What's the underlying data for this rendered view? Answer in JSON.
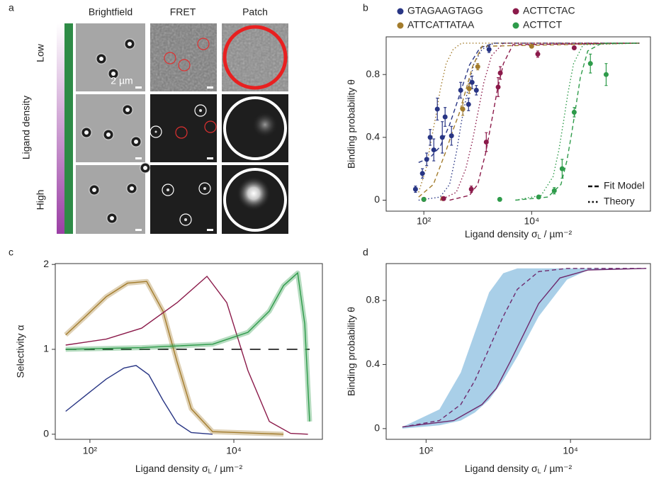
{
  "panel_a": {
    "label": "a",
    "columns": [
      "Brightfield",
      "FRET",
      "Patch"
    ],
    "row_top": "Low",
    "row_bottom": "High",
    "axis_label": "Ligand density",
    "scale_bar": "2 µm"
  },
  "chart_data": [
    {
      "type": "scatter",
      "label": "b",
      "xlabel": {
        "main": "Ligand density σ",
        "sub": "L",
        "unit": " / µm⁻²"
      },
      "ylabel": "Binding probability θ",
      "xscale": "log",
      "xlim": [
        20,
        1600000
      ],
      "ylim": [
        -0.07,
        1.04
      ],
      "xticks": [
        {
          "value": 100,
          "label": "10²"
        },
        {
          "value": 10000,
          "label": "10⁴"
        }
      ],
      "yticks": [
        0,
        0.4,
        0.8
      ],
      "legend_styles": [
        {
          "name": "Fit Model",
          "dash": "dashed"
        },
        {
          "name": "Theory",
          "dash": "dotted"
        }
      ],
      "series": [
        {
          "name": "GTAGAAGTAGG",
          "color": "#283584",
          "x": [
            70,
            94,
            113,
            131,
            153,
            178,
            220,
            248,
            326,
            483,
            675,
            785,
            942,
            1620
          ],
          "values": [
            0.07,
            0.17,
            0.26,
            0.4,
            0.32,
            0.58,
            0.4,
            0.53,
            0.41,
            0.7,
            0.61,
            0.75,
            0.7,
            0.96
          ],
          "errors": [
            0.02,
            0.03,
            0.04,
            0.05,
            0.07,
            0.07,
            0.1,
            0.06,
            0.06,
            0.05,
            0.04,
            0.04,
            0.03,
            0.02
          ],
          "fit": {
            "x": [
              80,
              130,
              200,
              300,
              450,
              700,
              1100,
              2000,
              1000000
            ],
            "values": [
              0.24,
              0.27,
              0.34,
              0.48,
              0.66,
              0.86,
              0.97,
              1,
              1
            ]
          },
          "theory": {
            "x": [
              80,
              200,
              300,
              400,
              500,
              650,
              850,
              1200,
              2000,
              1000000
            ],
            "values": [
              0,
              0.02,
              0.1,
              0.3,
              0.5,
              0.7,
              0.87,
              0.96,
              1,
              1
            ]
          }
        },
        {
          "name": "ATTCATTATAA",
          "color": "#a37c2c",
          "x": [
            100,
            226,
            528,
            694,
            1000,
            10000
          ],
          "values": [
            0.005,
            0.01,
            0.58,
            0.71,
            0.85,
            0.98
          ],
          "errors": [
            0.01,
            0.01,
            0.04,
            0.03,
            0.02,
            0.01
          ],
          "fit": {
            "x": [
              80,
              150,
              250,
              350,
              450,
              600,
              800,
              1200,
              1000000
            ],
            "values": [
              0.02,
              0.1,
              0.3,
              0.45,
              0.55,
              0.7,
              0.85,
              0.98,
              1
            ]
          },
          "theory": {
            "x": [
              80,
              110,
              140,
              170,
              200,
              260,
              350,
              500,
              1000000
            ],
            "values": [
              0.05,
              0.2,
              0.4,
              0.55,
              0.7,
              0.87,
              0.96,
              1,
              1
            ]
          }
        },
        {
          "name": "ACTTCTAC",
          "color": "#8b1a4a",
          "x": [
            100,
            233,
            760,
            1440,
            2390,
            2620,
            13000,
            61600
          ],
          "values": [
            0.005,
            0.01,
            0.07,
            0.37,
            0.72,
            0.81,
            0.93,
            0.97
          ],
          "errors": [
            0.01,
            0.01,
            0.02,
            0.06,
            0.06,
            0.04,
            0.02,
            0.01
          ],
          "fit": {
            "x": [
              300,
              700,
              1000,
              1400,
              1800,
              2300,
              3000,
              4500,
              1000000
            ],
            "values": [
              0,
              0.03,
              0.1,
              0.3,
              0.5,
              0.7,
              0.87,
              0.99,
              1
            ]
          },
          "theory": {
            "x": [
              200,
              400,
              600,
              800,
              1000,
              1300,
              1800,
              3000,
              1000000
            ],
            "values": [
              0,
              0.05,
              0.2,
              0.38,
              0.55,
              0.75,
              0.92,
              1,
              1
            ]
          }
        },
        {
          "name": "ACTTCT",
          "color": "#2e9b4a",
          "x": [
            100,
            2560,
            13500,
            26300,
            36800,
            61600,
            123000,
            241000
          ],
          "values": [
            0.005,
            0.005,
            0.02,
            0.06,
            0.2,
            0.56,
            0.87,
            0.8
          ],
          "errors": [
            0.01,
            0.01,
            0.01,
            0.02,
            0.06,
            0.03,
            0.06,
            0.07
          ],
          "fit": {
            "x": [
              5000,
              20000,
              35000,
              45000,
              55000,
              65000,
              80000,
              110000,
              200000,
              1000000
            ],
            "values": [
              0,
              0.02,
              0.1,
              0.25,
              0.42,
              0.58,
              0.78,
              0.95,
              1,
              1
            ]
          },
          "theory": {
            "x": [
              5000,
              15000,
              25000,
              32000,
              39000,
              47000,
              60000,
              90000,
              1000000
            ],
            "values": [
              0,
              0.03,
              0.15,
              0.32,
              0.5,
              0.68,
              0.87,
              0.99,
              1
            ]
          }
        }
      ]
    },
    {
      "type": "line",
      "label": "c",
      "xlabel": {
        "main": "Ligand density σ",
        "sub": "L",
        "unit": " / µm⁻²"
      },
      "ylabel": "Selectivity α",
      "xscale": "log",
      "xlim": [
        33,
        170000
      ],
      "ylim": [
        -0.06,
        2.01
      ],
      "xticks": [
        {
          "value": 100,
          "label": "10²"
        },
        {
          "value": 10000,
          "label": "10⁴"
        }
      ],
      "yticks": [
        0,
        1,
        2
      ],
      "series": [
        {
          "color": "#000000",
          "dash": "longdash",
          "x": [
            46,
            113000
          ],
          "values": [
            1,
            1
          ]
        },
        {
          "color": "#283584",
          "dash": "solid",
          "x": [
            46,
            85,
            169,
            297,
            437,
            658,
            1035,
            1630,
            2560,
            5060
          ],
          "values": [
            0.27,
            0.45,
            0.65,
            0.78,
            0.81,
            0.7,
            0.4,
            0.13,
            0.02,
            0
          ]
        },
        {
          "color": "#a37c2c",
          "dash": "solid",
          "shaded": true,
          "x": [
            46,
            85,
            169,
            333,
            614,
            1035,
            1630,
            2560,
            5060,
            49000
          ],
          "values": [
            1.17,
            1.38,
            1.62,
            1.78,
            1.8,
            1.45,
            0.85,
            0.3,
            0.03,
            0
          ]
        },
        {
          "color": "#8b1a4a",
          "dash": "solid",
          "x": [
            46,
            169,
            524,
            1630,
            4230,
            7960,
            15700,
            31100,
            61400,
            107000
          ],
          "values": [
            1.05,
            1.12,
            1.25,
            1.55,
            1.86,
            1.55,
            0.75,
            0.15,
            0.01,
            0
          ]
        },
        {
          "color": "#2e9b4a",
          "dash": "solid",
          "shaded": true,
          "x": [
            46,
            524,
            5060,
            15700,
            31100,
            49000,
            77100,
            96600,
            113000
          ],
          "values": [
            1,
            1.02,
            1.06,
            1.2,
            1.45,
            1.75,
            1.9,
            1.3,
            0.15
          ]
        }
      ]
    },
    {
      "type": "line",
      "label": "d",
      "xlabel": {
        "main": "Ligand density σ",
        "sub": "L",
        "unit": " / µm⁻²"
      },
      "ylabel": "Binding probability θ",
      "xscale": "log",
      "xlim": [
        28,
        128000
      ],
      "ylim": [
        -0.067,
        1.03
      ],
      "xticks": [
        {
          "value": 100,
          "label": "10²"
        },
        {
          "value": 10000,
          "label": "10⁴"
        }
      ],
      "yticks": [
        0,
        0.4,
        0.8
      ],
      "band": {
        "color": "#a9cfe8",
        "x": [
          47,
          153,
          302,
          474,
          746,
          1170,
          1840,
          3620,
          8930,
          17600,
          112000
        ],
        "upper": [
          0.01,
          0.12,
          0.35,
          0.6,
          0.85,
          0.97,
          1,
          1,
          1,
          1,
          1
        ],
        "lower": [
          0,
          0.02,
          0.05,
          0.1,
          0.18,
          0.3,
          0.45,
          0.7,
          0.93,
          0.99,
          1
        ]
      },
      "series": [
        {
          "color": "#6e2a6e",
          "dash": "dashed",
          "x": [
            47,
            153,
            302,
            474,
            746,
            1170,
            1840,
            3620,
            8930,
            112000
          ],
          "values": [
            0.01,
            0.05,
            0.15,
            0.3,
            0.5,
            0.7,
            0.87,
            0.98,
            1,
            1
          ]
        },
        {
          "color": "#6e2a6e",
          "dash": "solid",
          "x": [
            47,
            241,
            596,
            935,
            1470,
            2310,
            3620,
            7130,
            17600,
            112000
          ],
          "values": [
            0.01,
            0.05,
            0.15,
            0.25,
            0.42,
            0.6,
            0.78,
            0.94,
            0.99,
            1
          ]
        }
      ]
    }
  ]
}
